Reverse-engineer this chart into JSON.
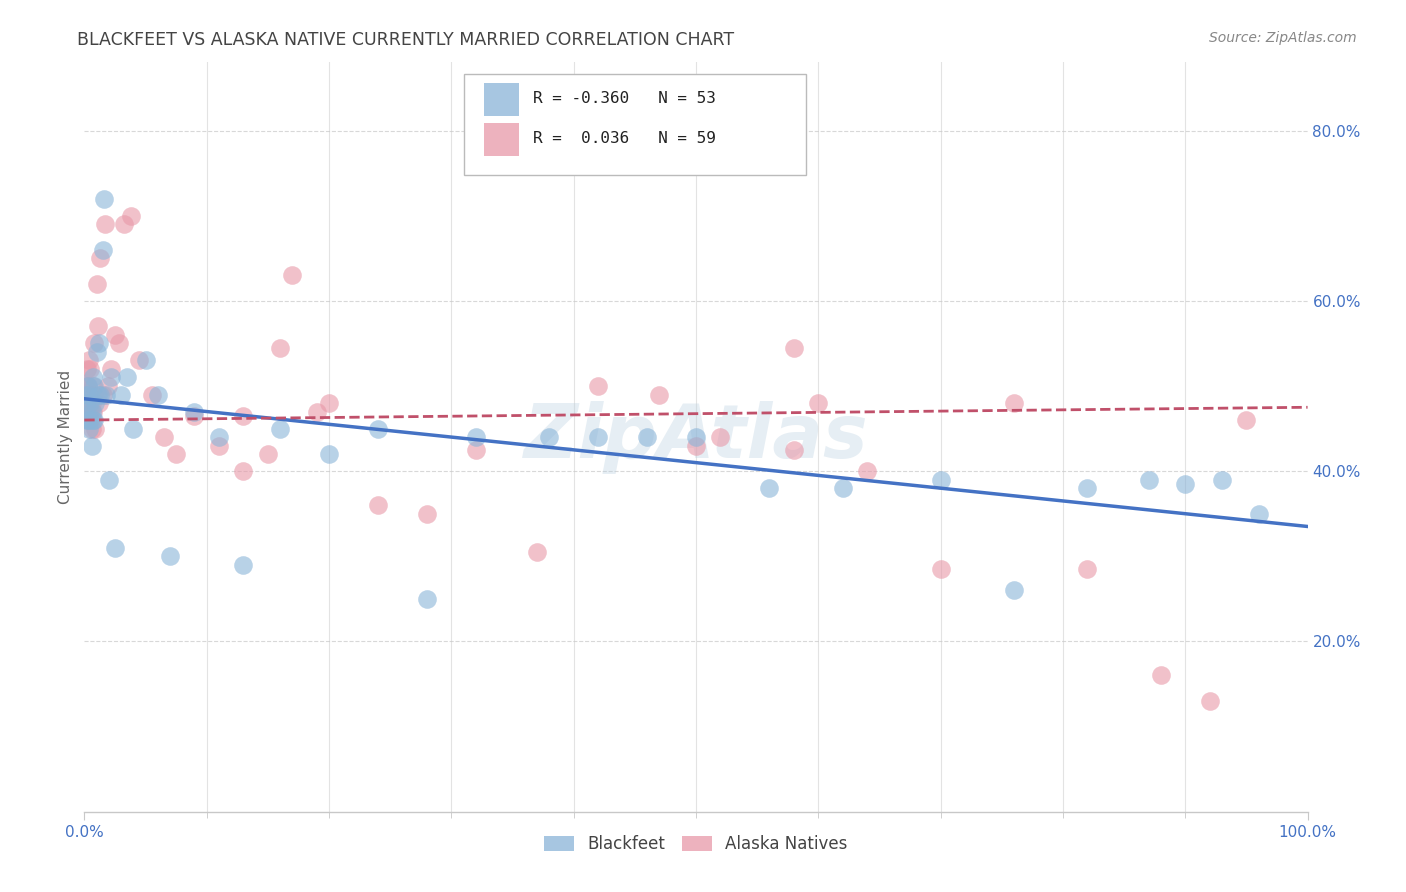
{
  "title": "BLACKFEET VS ALASKA NATIVE CURRENTLY MARRIED CORRELATION CHART",
  "source": "Source: ZipAtlas.com",
  "ylabel": "Currently Married",
  "watermark": "ZipAtlas",
  "blackfeet_x": [
    0.001,
    0.002,
    0.002,
    0.003,
    0.003,
    0.004,
    0.004,
    0.005,
    0.005,
    0.006,
    0.006,
    0.007,
    0.007,
    0.008,
    0.008,
    0.009,
    0.01,
    0.011,
    0.012,
    0.013,
    0.015,
    0.016,
    0.018,
    0.02,
    0.022,
    0.025,
    0.03,
    0.035,
    0.04,
    0.05,
    0.06,
    0.07,
    0.09,
    0.11,
    0.13,
    0.16,
    0.2,
    0.24,
    0.28,
    0.32,
    0.38,
    0.42,
    0.46,
    0.5,
    0.56,
    0.62,
    0.7,
    0.76,
    0.82,
    0.87,
    0.9,
    0.93,
    0.96
  ],
  "blackfeet_y": [
    0.49,
    0.48,
    0.46,
    0.5,
    0.46,
    0.49,
    0.45,
    0.48,
    0.46,
    0.47,
    0.43,
    0.51,
    0.46,
    0.5,
    0.46,
    0.48,
    0.54,
    0.49,
    0.55,
    0.49,
    0.66,
    0.72,
    0.49,
    0.39,
    0.51,
    0.31,
    0.49,
    0.51,
    0.45,
    0.53,
    0.49,
    0.3,
    0.47,
    0.44,
    0.29,
    0.45,
    0.42,
    0.45,
    0.25,
    0.44,
    0.44,
    0.44,
    0.44,
    0.44,
    0.38,
    0.38,
    0.39,
    0.26,
    0.38,
    0.39,
    0.385,
    0.39,
    0.35
  ],
  "alaska_x": [
    0.001,
    0.002,
    0.002,
    0.003,
    0.003,
    0.004,
    0.004,
    0.005,
    0.005,
    0.006,
    0.006,
    0.007,
    0.007,
    0.008,
    0.008,
    0.009,
    0.01,
    0.011,
    0.012,
    0.013,
    0.015,
    0.017,
    0.019,
    0.022,
    0.025,
    0.028,
    0.032,
    0.038,
    0.045,
    0.055,
    0.065,
    0.075,
    0.09,
    0.11,
    0.13,
    0.16,
    0.2,
    0.24,
    0.28,
    0.32,
    0.37,
    0.42,
    0.47,
    0.52,
    0.58,
    0.64,
    0.7,
    0.76,
    0.82,
    0.88,
    0.92,
    0.95,
    0.17,
    0.19,
    0.58,
    0.6,
    0.13,
    0.5,
    0.15
  ],
  "alaska_y": [
    0.5,
    0.48,
    0.52,
    0.47,
    0.5,
    0.48,
    0.53,
    0.47,
    0.52,
    0.48,
    0.45,
    0.5,
    0.47,
    0.49,
    0.55,
    0.45,
    0.62,
    0.57,
    0.48,
    0.65,
    0.49,
    0.69,
    0.5,
    0.52,
    0.56,
    0.55,
    0.69,
    0.7,
    0.53,
    0.49,
    0.44,
    0.42,
    0.465,
    0.43,
    0.465,
    0.545,
    0.48,
    0.36,
    0.35,
    0.425,
    0.305,
    0.5,
    0.49,
    0.44,
    0.425,
    0.4,
    0.285,
    0.48,
    0.285,
    0.16,
    0.13,
    0.46,
    0.63,
    0.47,
    0.545,
    0.48,
    0.4,
    0.43,
    0.42
  ],
  "blue_line_x": [
    0.0,
    1.0
  ],
  "blue_line_y": [
    0.485,
    0.335
  ],
  "pink_line_x": [
    0.0,
    1.0
  ],
  "pink_line_y": [
    0.46,
    0.475
  ],
  "blue_line_color": "#4472c4",
  "pink_line_color": "#c0506a",
  "blue_scatter_color": "#8ab4d8",
  "pink_scatter_color": "#e898a8",
  "background_color": "#ffffff",
  "grid_color": "#c8c8c8",
  "title_color": "#444444",
  "source_color": "#888888",
  "axis_tick_color": "#4472c4",
  "ylabel_color": "#666666",
  "xlim": [
    0.0,
    1.0
  ],
  "ylim": [
    0.0,
    0.88
  ],
  "ytick_positions": [
    0.2,
    0.4,
    0.6,
    0.8
  ],
  "ytick_labels": [
    "20.0%",
    "40.0%",
    "60.0%",
    "80.0%"
  ],
  "xtick_minor": [
    0.1,
    0.2,
    0.3,
    0.4,
    0.5,
    0.6,
    0.7,
    0.8,
    0.9
  ],
  "legend_R_blue": "-0.360",
  "legend_N_blue": "53",
  "legend_R_pink": "0.036",
  "legend_N_pink": "59"
}
